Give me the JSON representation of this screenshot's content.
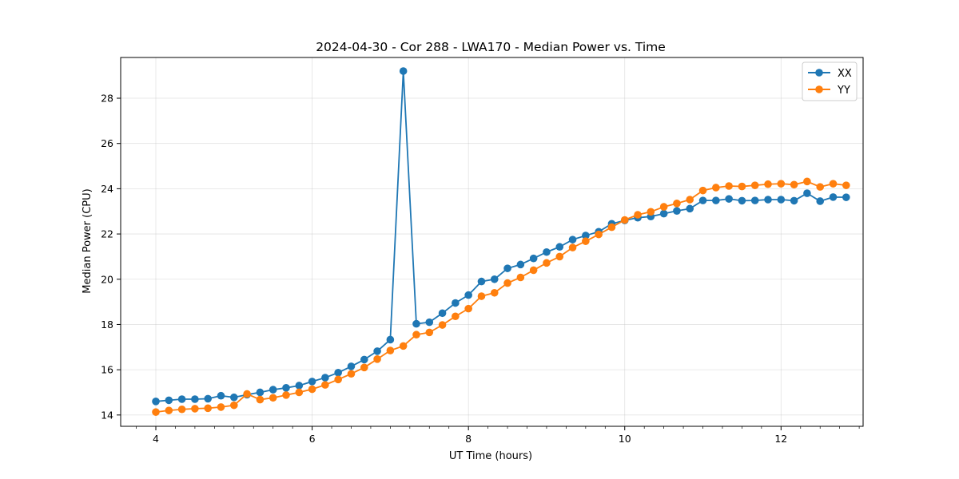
{
  "chart_data": {
    "type": "line",
    "title": "2024-04-30 - Cor 288 - LWA170 - Median Power vs. Time",
    "xlabel": "UT Time (hours)",
    "ylabel": "Median Power (CPU)",
    "xlim": [
      3.55,
      13.05
    ],
    "ylim": [
      13.5,
      29.8
    ],
    "xticks": [
      4,
      6,
      8,
      10,
      12
    ],
    "xtick_labels": [
      "4",
      "6",
      "8",
      "10",
      "12"
    ],
    "yticks": [
      14,
      16,
      18,
      20,
      22,
      24,
      26,
      28
    ],
    "ytick_labels": [
      "14",
      "16",
      "18",
      "20",
      "22",
      "24",
      "26",
      "28"
    ],
    "grid": true,
    "legend_position": "top-right",
    "x": [
      4.0,
      4.1667,
      4.3333,
      4.5,
      4.6667,
      4.8333,
      5.0,
      5.1667,
      5.3333,
      5.5,
      5.6667,
      5.8333,
      6.0,
      6.1667,
      6.3333,
      6.5,
      6.6667,
      6.8333,
      7.0,
      7.1667,
      7.3333,
      7.5,
      7.6667,
      7.8333,
      8.0,
      8.1667,
      8.3333,
      8.5,
      8.6667,
      8.8333,
      9.0,
      9.1667,
      9.3333,
      9.5,
      9.6667,
      9.8333,
      10.0,
      10.1667,
      10.3333,
      10.5,
      10.6667,
      10.8333,
      11.0,
      11.1667,
      11.3333,
      11.5,
      11.6667,
      11.8333,
      12.0,
      12.1667,
      12.3333,
      12.5,
      12.6667,
      12.8333
    ],
    "series": [
      {
        "name": "XX",
        "color": "#1f77b4",
        "values": [
          14.6,
          14.65,
          14.7,
          14.7,
          14.72,
          14.85,
          14.78,
          14.9,
          15.0,
          15.12,
          15.2,
          15.3,
          15.48,
          15.65,
          15.87,
          16.15,
          16.45,
          16.82,
          17.33,
          29.2,
          18.03,
          18.1,
          18.5,
          18.95,
          19.3,
          19.9,
          20.0,
          20.48,
          20.65,
          20.92,
          21.2,
          21.43,
          21.75,
          21.93,
          22.1,
          22.45,
          22.6,
          22.72,
          22.77,
          22.9,
          23.02,
          23.12,
          23.48,
          23.48,
          23.55,
          23.47,
          23.48,
          23.52,
          23.52,
          23.47,
          23.8,
          23.45,
          23.63,
          23.62
        ]
      },
      {
        "name": "YY",
        "color": "#ff7f0e",
        "values": [
          14.13,
          14.2,
          14.25,
          14.28,
          14.3,
          14.35,
          14.43,
          14.93,
          14.68,
          14.76,
          14.88,
          15.0,
          15.14,
          15.33,
          15.57,
          15.82,
          16.1,
          16.47,
          16.85,
          17.05,
          17.55,
          17.65,
          17.98,
          18.36,
          18.7,
          19.25,
          19.4,
          19.83,
          20.08,
          20.4,
          20.72,
          21.0,
          21.4,
          21.68,
          21.98,
          22.3,
          22.62,
          22.85,
          22.98,
          23.2,
          23.35,
          23.52,
          23.92,
          24.05,
          24.12,
          24.1,
          24.15,
          24.2,
          24.22,
          24.18,
          24.32,
          24.08,
          24.22,
          24.15
        ]
      }
    ]
  }
}
